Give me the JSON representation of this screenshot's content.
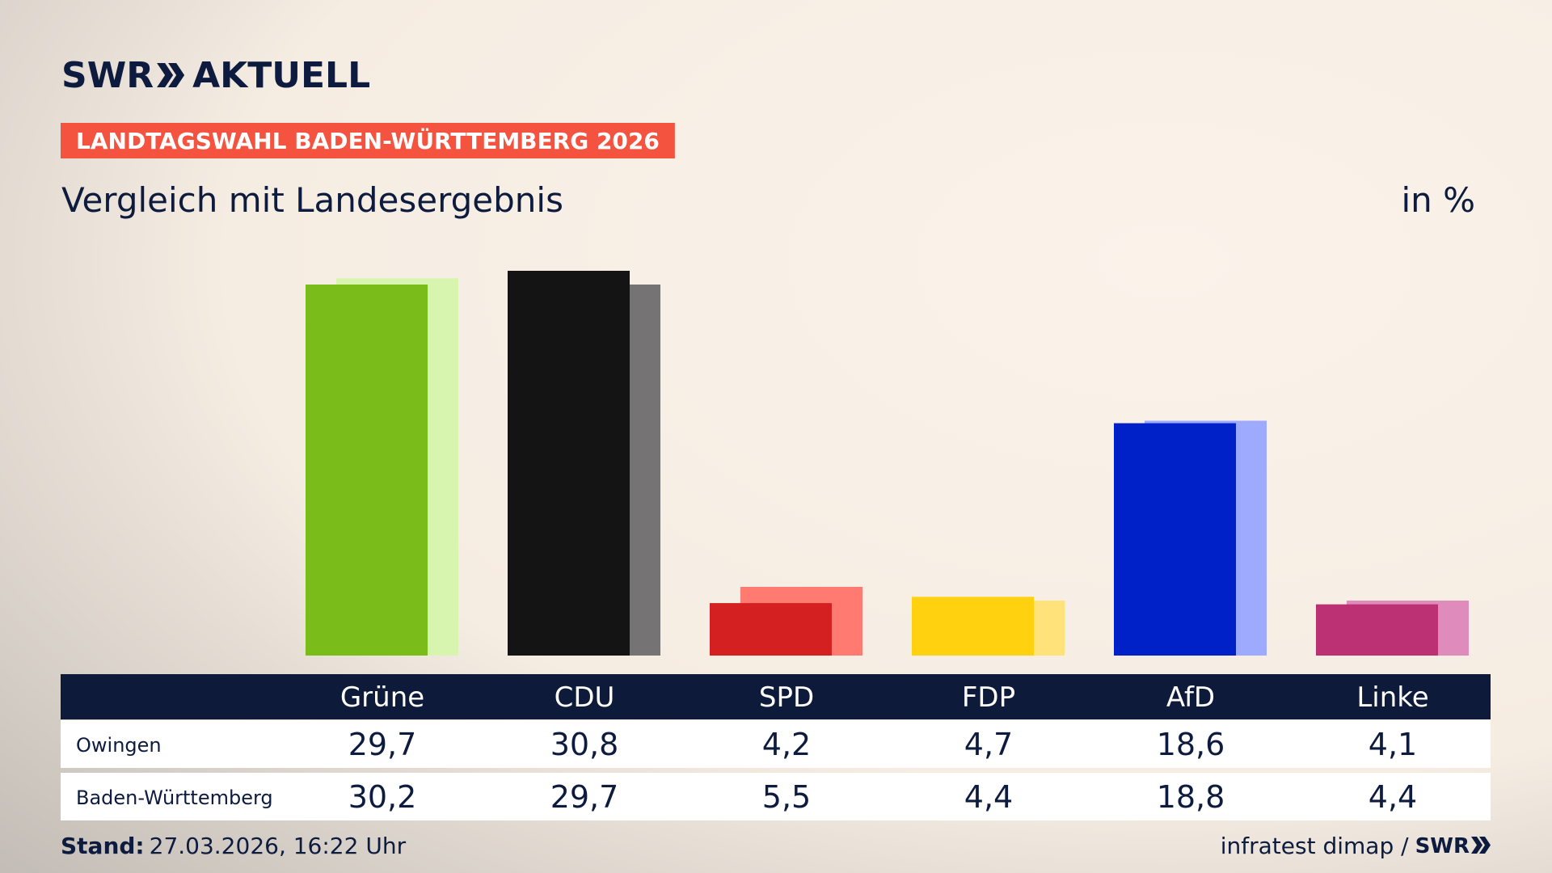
{
  "brand": {
    "logo_left": "SWR",
    "logo_right": "AKTUELL"
  },
  "chart_data": {
    "type": "bar",
    "banner": "LANDTAGSWAHL BADEN-WÜRTTEMBERG 2026",
    "title": "Vergleich mit Landesergebnis",
    "unit": "in %",
    "categories": [
      "Grüne",
      "CDU",
      "SPD",
      "FDP",
      "AfD",
      "Linke"
    ],
    "series": [
      {
        "name": "Owingen",
        "colors": [
          "#7abd1a",
          "#141414",
          "#d42020",
          "#ffd10f",
          "#0020c8",
          "#bc3074"
        ],
        "values": [
          29.7,
          30.8,
          4.2,
          4.7,
          18.6,
          4.1
        ],
        "value_labels": [
          "29,7",
          "30,8",
          "4,2",
          "4,7",
          "18,6",
          "4,1"
        ]
      },
      {
        "name": "Baden-Württemberg",
        "colors": [
          "#d8f5b0",
          "#757373",
          "#ff7b72",
          "#ffe27a",
          "#9eaafd",
          "#df8cbd"
        ],
        "values": [
          30.2,
          29.7,
          5.5,
          4.4,
          18.8,
          4.4
        ],
        "value_labels": [
          "30,2",
          "29,7",
          "5,5",
          "4,4",
          "18,8",
          "4,4"
        ]
      }
    ]
  },
  "footer": {
    "stand_label": "Stand:",
    "stand": "27.03.2026, 16:22 Uhr",
    "source": "infratest dimap /",
    "logo": "SWR"
  }
}
